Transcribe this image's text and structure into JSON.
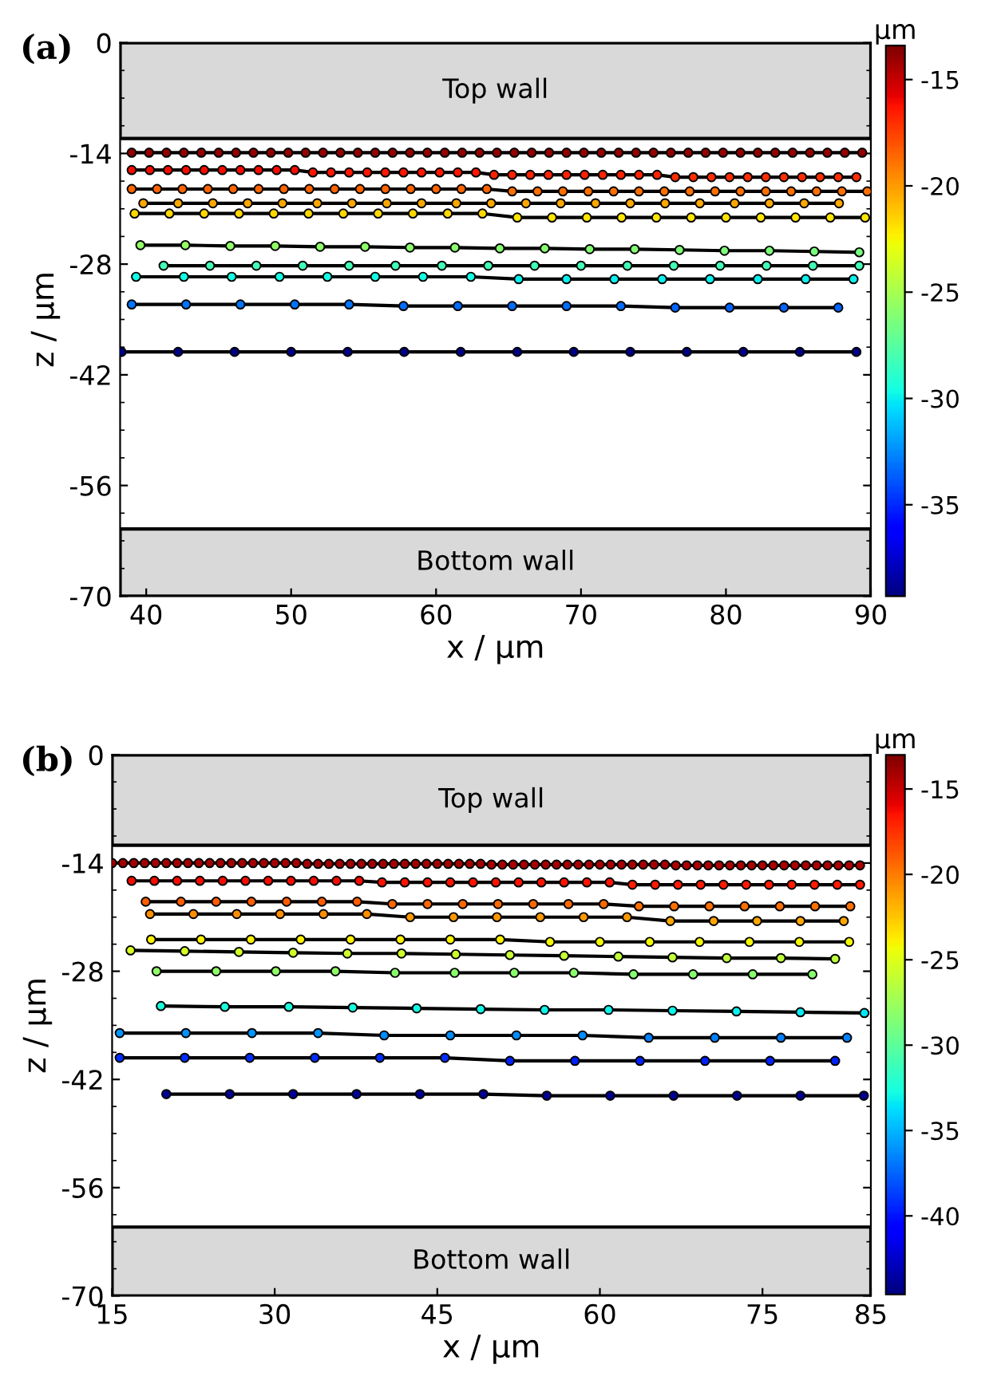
{
  "chart_data": [
    {
      "type": "line",
      "title": "(a)",
      "xlabel": "x / μm",
      "ylabel": "z / μm",
      "clabel": "μm",
      "xlim": [
        38.2,
        90
      ],
      "xticks": [
        40,
        50,
        60,
        70,
        80,
        90
      ],
      "ylim": [
        -70,
        0
      ],
      "yticks": [
        -70,
        -56,
        -42,
        -28,
        -14,
        0
      ],
      "clim": [
        -39.3,
        -13.4
      ],
      "cticks": [
        -35,
        -30,
        -25,
        -20,
        -15
      ],
      "marker": "circle",
      "line_style": "solid",
      "grid": false,
      "legend": false,
      "bands": [
        {
          "axis": "y",
          "from": -12.1,
          "to": 0,
          "label": "Top wall",
          "color": "#d9d9d9"
        },
        {
          "axis": "y",
          "from": -70,
          "to": -61.5,
          "label": "Bottom wall",
          "color": "#d9d9d9"
        }
      ],
      "series": [
        {
          "color": "#000000",
          "x": [
            39.0,
            40.2,
            41.4,
            42.6,
            43.8,
            45.0,
            46.2,
            47.4,
            48.6,
            49.8,
            51.0,
            52.2,
            53.4,
            54.6,
            55.8,
            57.0,
            58.2,
            59.4,
            60.6,
            61.8,
            63.0,
            64.2,
            65.4,
            66.6,
            67.8,
            69.0,
            70.2,
            71.4,
            72.6,
            73.8,
            75.0,
            76.2,
            77.4,
            78.6,
            79.8,
            81.0,
            82.2,
            83.4,
            84.6,
            85.8,
            87.0,
            88.2,
            89.4
          ],
          "values": [
            -13.9,
            -13.9,
            -13.9,
            -13.9,
            -13.9,
            -13.9,
            -13.9,
            -13.9,
            -13.9,
            -13.9,
            -13.9,
            -13.9,
            -13.9,
            -13.9,
            -13.9,
            -13.9,
            -13.9,
            -13.9,
            -13.9,
            -13.9,
            -13.9,
            -13.9,
            -13.9,
            -13.9,
            -13.9,
            -13.9,
            -13.9,
            -13.9,
            -13.9,
            -13.9,
            -13.9,
            -13.9,
            -13.9,
            -13.9,
            -13.9,
            -13.9,
            -13.9,
            -13.9,
            -13.9,
            -13.9,
            -13.9,
            -13.9,
            -13.9
          ]
        },
        {
          "color": "#000000",
          "x": [
            39.0,
            40.25,
            41.5,
            42.75,
            44.0,
            45.25,
            46.5,
            47.75,
            49.0,
            50.25,
            51.5,
            52.75,
            54.0,
            55.25,
            56.5,
            57.75,
            59.0,
            60.25,
            61.5,
            62.75,
            64.0,
            65.25,
            66.5,
            67.75,
            69.0,
            70.25,
            71.5,
            72.75,
            74.0,
            75.25,
            76.5,
            77.75,
            79.0,
            80.25,
            81.5,
            82.75,
            84.0,
            85.25,
            86.5,
            87.75,
            89.0
          ],
          "values": [
            -16.1,
            -16.1,
            -16.1,
            -16.1,
            -16.1,
            -16.1,
            -16.1,
            -16.1,
            -16.1,
            -16.1,
            -16.4,
            -16.4,
            -16.4,
            -16.4,
            -16.4,
            -16.4,
            -16.4,
            -16.4,
            -16.4,
            -16.4,
            -16.7,
            -16.7,
            -16.7,
            -16.7,
            -16.7,
            -16.7,
            -16.7,
            -16.7,
            -16.7,
            -16.7,
            -17.0,
            -17.0,
            -17.0,
            -17.0,
            -17.0,
            -17.0,
            -17.0,
            -17.0,
            -17.0,
            -17.0,
            -17.0
          ]
        },
        {
          "color": "#000000",
          "x": [
            39,
            40.75,
            42.5,
            44.25,
            46,
            47.75,
            49.5,
            51.25,
            53,
            54.75,
            56.5,
            58.25,
            60,
            61.75,
            63.5,
            65.25,
            67,
            68.75,
            70.5,
            72.25,
            74,
            75.75,
            77.5,
            79.25,
            81,
            82.75,
            84.5,
            86.25,
            88,
            89.75
          ],
          "values": [
            -18.5,
            -18.5,
            -18.5,
            -18.5,
            -18.5,
            -18.5,
            -18.5,
            -18.5,
            -18.5,
            -18.5,
            -18.5,
            -18.5,
            -18.5,
            -18.5,
            -18.5,
            -18.8,
            -18.8,
            -18.8,
            -18.8,
            -18.8,
            -18.8,
            -18.8,
            -18.8,
            -18.8,
            -18.8,
            -18.8,
            -18.8,
            -18.8,
            -18.8,
            -18.8
          ]
        },
        {
          "color": "#000000",
          "x": [
            39.8,
            42.2,
            44.6,
            47.0,
            49.4,
            51.8,
            54.2,
            56.6,
            59.0,
            61.4,
            63.8,
            66.2,
            68.6,
            71.0,
            73.4,
            75.8,
            78.2,
            80.6,
            83.0,
            85.4,
            87.8
          ],
          "values": [
            -20.3,
            -20.3,
            -20.3,
            -20.3,
            -20.3,
            -20.3,
            -20.3,
            -20.3,
            -20.3,
            -20.3,
            -20.3,
            -20.3,
            -20.3,
            -20.3,
            -20.3,
            -20.3,
            -20.3,
            -20.3,
            -20.3,
            -20.3,
            -20.3
          ]
        },
        {
          "color": "#000000",
          "x": [
            39.2,
            41.6,
            44.0,
            46.4,
            48.8,
            51.2,
            53.6,
            56.0,
            58.4,
            60.8,
            63.2,
            65.6,
            68.0,
            70.4,
            72.8,
            75.2,
            77.6,
            80.0,
            82.4,
            84.8,
            87.2,
            89.6
          ],
          "values": [
            -21.6,
            -21.6,
            -21.6,
            -21.6,
            -21.6,
            -21.6,
            -21.6,
            -21.6,
            -21.6,
            -21.6,
            -21.6,
            -22.1,
            -22.1,
            -22.1,
            -22.1,
            -22.1,
            -22.1,
            -22.1,
            -22.1,
            -22.1,
            -22.1,
            -22.1
          ]
        },
        {
          "color": "#000000",
          "x": [
            39.6,
            42.7,
            45.8,
            48.9,
            52.0,
            55.1,
            58.2,
            61.3,
            64.4,
            67.5,
            70.6,
            73.7,
            76.8,
            79.9,
            83.0,
            86.1,
            89.2
          ],
          "values": [
            -25.6,
            -25.6,
            -25.7,
            -25.7,
            -25.8,
            -25.8,
            -25.9,
            -25.9,
            -26.0,
            -26.0,
            -26.1,
            -26.1,
            -26.2,
            -26.3,
            -26.3,
            -26.4,
            -26.5
          ]
        },
        {
          "color": "#000000",
          "x": [
            41.2,
            44.4,
            47.6,
            50.8,
            54.0,
            57.2,
            60.4,
            63.6,
            66.8,
            70.0,
            73.2,
            76.4,
            79.6,
            82.8,
            86.0,
            89.2
          ],
          "values": [
            -28.2,
            -28.2,
            -28.2,
            -28.2,
            -28.2,
            -28.2,
            -28.2,
            -28.2,
            -28.2,
            -28.2,
            -28.2,
            -28.2,
            -28.2,
            -28.2,
            -28.2,
            -28.2
          ]
        },
        {
          "color": "#000000",
          "x": [
            39.3,
            42.6,
            45.9,
            49.2,
            52.5,
            55.8,
            59.1,
            62.4,
            65.7,
            69.0,
            72.3,
            75.6,
            78.9,
            82.2,
            85.5,
            88.8
          ],
          "values": [
            -29.6,
            -29.6,
            -29.6,
            -29.6,
            -29.6,
            -29.6,
            -29.6,
            -29.6,
            -29.9,
            -29.9,
            -29.9,
            -29.9,
            -29.9,
            -29.9,
            -29.9,
            -29.9
          ]
        },
        {
          "color": "#000000",
          "x": [
            39.0,
            42.75,
            46.5,
            50.25,
            54.0,
            57.75,
            61.5,
            65.25,
            69.0,
            72.75,
            76.5,
            80.25,
            84.0,
            87.75
          ],
          "values": [
            -33.1,
            -33.1,
            -33.1,
            -33.1,
            -33.1,
            -33.3,
            -33.3,
            -33.3,
            -33.3,
            -33.3,
            -33.5,
            -33.5,
            -33.5,
            -33.5
          ]
        },
        {
          "color": "#000000",
          "x": [
            38.3,
            42.2,
            46.1,
            50.0,
            53.9,
            57.8,
            61.7,
            65.6,
            69.5,
            73.4,
            77.3,
            81.2,
            85.1,
            89.0
          ],
          "values": [
            -39.1,
            -39.1,
            -39.1,
            -39.1,
            -39.1,
            -39.1,
            -39.1,
            -39.1,
            -39.1,
            -39.1,
            -39.1,
            -39.1,
            -39.1,
            -39.1
          ]
        }
      ]
    },
    {
      "type": "line",
      "title": "(b)",
      "xlabel": "x / μm",
      "ylabel": "z / μm",
      "clabel": "μm",
      "xlim": [
        15,
        85
      ],
      "xticks": [
        15,
        30,
        45,
        60,
        75,
        85
      ],
      "ylim": [
        -70,
        0
      ],
      "yticks": [
        -70,
        -56,
        -42,
        -28,
        -14,
        0
      ],
      "clim": [
        -44.6,
        -13.0
      ],
      "cticks": [
        -40,
        -35,
        -30,
        -25,
        -20,
        -15
      ],
      "marker": "circle",
      "line_style": "solid",
      "grid": false,
      "legend": false,
      "bands": [
        {
          "axis": "y",
          "from": -11.7,
          "to": 0,
          "label": "Top wall",
          "color": "#d9d9d9"
        },
        {
          "axis": "y",
          "from": -70,
          "to": -61.1,
          "label": "Bottom wall",
          "color": "#d9d9d9"
        }
      ],
      "series": [
        {
          "color": "#000000",
          "x": [
            15,
            16,
            17,
            18,
            19,
            20,
            21,
            22,
            23,
            24,
            25,
            26,
            27,
            28,
            29,
            30,
            31,
            32,
            33,
            34,
            35,
            36,
            37,
            38,
            39,
            40,
            41,
            42,
            43,
            44,
            45,
            46,
            47,
            48,
            49,
            50,
            51,
            52,
            53,
            54,
            55,
            56,
            57,
            58,
            59,
            60,
            61,
            62,
            63,
            64,
            65,
            66,
            67,
            68,
            69,
            70,
            71,
            72,
            73,
            74,
            75,
            76,
            77,
            78,
            79,
            80,
            81,
            82,
            83,
            84
          ],
          "values": [
            -14.0,
            -14.0,
            -14.0,
            -14.0,
            -14.0,
            -14.0,
            -14.0,
            -14.0,
            -14.0,
            -14.0,
            -14.0,
            -14.0,
            -14.0,
            -14.0,
            -14.0,
            -14.0,
            -14.0,
            -14.0,
            -14.1,
            -14.1,
            -14.1,
            -14.1,
            -14.1,
            -14.1,
            -14.1,
            -14.1,
            -14.1,
            -14.1,
            -14.1,
            -14.1,
            -14.1,
            -14.1,
            -14.1,
            -14.1,
            -14.1,
            -14.2,
            -14.2,
            -14.2,
            -14.2,
            -14.2,
            -14.2,
            -14.2,
            -14.2,
            -14.2,
            -14.2,
            -14.2,
            -14.2,
            -14.2,
            -14.2,
            -14.2,
            -14.2,
            -14.2,
            -14.3,
            -14.3,
            -14.3,
            -14.3,
            -14.3,
            -14.3,
            -14.3,
            -14.3,
            -14.3,
            -14.3,
            -14.3,
            -14.3,
            -14.3,
            -14.3,
            -14.3,
            -14.3,
            -14.3,
            -14.3
          ]
        },
        {
          "color": "#000000",
          "x": [
            16.8,
            18.9,
            21.0,
            23.1,
            25.2,
            27.3,
            29.4,
            31.5,
            33.6,
            35.7,
            37.8,
            39.9,
            42.0,
            44.1,
            46.2,
            48.3,
            50.4,
            52.5,
            54.6,
            56.7,
            58.8,
            60.9,
            63.0,
            65.1,
            67.2,
            69.3,
            71.4,
            73.5,
            75.6,
            77.7,
            79.8,
            81.9,
            84.0
          ],
          "values": [
            -16.3,
            -16.3,
            -16.3,
            -16.3,
            -16.3,
            -16.3,
            -16.3,
            -16.3,
            -16.3,
            -16.3,
            -16.3,
            -16.5,
            -16.5,
            -16.5,
            -16.5,
            -16.5,
            -16.5,
            -16.5,
            -16.5,
            -16.5,
            -16.5,
            -16.5,
            -16.8,
            -16.8,
            -16.8,
            -16.8,
            -16.8,
            -16.8,
            -16.8,
            -16.8,
            -16.8,
            -16.8,
            -16.8
          ]
        },
        {
          "color": "#000000",
          "x": [
            18.1,
            21.35,
            24.6,
            27.85,
            31.1,
            34.35,
            37.6,
            40.85,
            44.1,
            47.35,
            50.6,
            53.85,
            57.1,
            60.35,
            63.6,
            66.85,
            70.1,
            73.35,
            76.6,
            79.85,
            83.1
          ],
          "values": [
            -19.0,
            -19.0,
            -19.0,
            -19.0,
            -19.0,
            -19.0,
            -19.0,
            -19.3,
            -19.3,
            -19.3,
            -19.3,
            -19.3,
            -19.3,
            -19.3,
            -19.6,
            -19.6,
            -19.6,
            -19.6,
            -19.6,
            -19.6,
            -19.6
          ]
        },
        {
          "color": "#000000",
          "x": [
            18.5,
            22.5,
            26.5,
            30.5,
            34.5,
            38.5,
            42.5,
            46.5,
            50.5,
            54.5,
            58.5,
            62.5,
            66.5,
            70.5,
            74.5,
            78.5,
            82.5
          ],
          "values": [
            -20.6,
            -20.6,
            -20.6,
            -20.6,
            -20.6,
            -20.6,
            -21.0,
            -21.0,
            -21.0,
            -21.0,
            -21.0,
            -21.0,
            -21.5,
            -21.5,
            -21.5,
            -21.5,
            -21.5
          ]
        },
        {
          "color": "#000000",
          "x": [
            18.6,
            23.2,
            27.8,
            32.4,
            37.0,
            41.6,
            46.2,
            50.8,
            55.4,
            60.0,
            64.6,
            69.2,
            73.8,
            78.4,
            83.0
          ],
          "values": [
            -23.9,
            -23.9,
            -23.9,
            -23.9,
            -23.9,
            -23.9,
            -23.9,
            -23.9,
            -24.2,
            -24.2,
            -24.2,
            -24.2,
            -24.2,
            -24.2,
            -24.2
          ]
        },
        {
          "color": "#000000",
          "x": [
            16.7,
            21.7,
            26.7,
            31.7,
            36.7,
            41.7,
            46.7,
            51.7,
            56.7,
            61.7,
            66.7,
            71.7,
            76.7,
            81.7
          ],
          "values": [
            -25.3,
            -25.4,
            -25.5,
            -25.6,
            -25.7,
            -25.7,
            -25.8,
            -25.9,
            -26.0,
            -26.1,
            -26.2,
            -26.3,
            -26.3,
            -26.4
          ]
        },
        {
          "color": "#000000",
          "x": [
            19.1,
            24.6,
            30.1,
            35.6,
            41.1,
            46.6,
            52.1,
            57.6,
            63.1,
            68.6,
            74.1,
            79.6
          ],
          "values": [
            -28.0,
            -28.0,
            -28.0,
            -28.0,
            -28.2,
            -28.2,
            -28.2,
            -28.2,
            -28.4,
            -28.4,
            -28.4,
            -28.4
          ]
        },
        {
          "color": "#000000",
          "x": [
            19.5,
            25.4,
            31.3,
            37.2,
            43.1,
            49.0,
            54.9,
            60.8,
            66.7,
            72.6,
            78.5,
            84.4
          ],
          "values": [
            -32.5,
            -32.6,
            -32.6,
            -32.7,
            -32.8,
            -32.9,
            -33.0,
            -33.0,
            -33.1,
            -33.2,
            -33.3,
            -33.4
          ]
        },
        {
          "color": "#000000",
          "x": [
            15.7,
            21.8,
            27.9,
            34.0,
            40.1,
            46.2,
            52.3,
            58.4,
            64.5,
            70.6,
            76.7,
            82.8
          ],
          "values": [
            -36.0,
            -36.0,
            -36.0,
            -36.0,
            -36.3,
            -36.3,
            -36.3,
            -36.3,
            -36.6,
            -36.6,
            -36.6,
            -36.6
          ]
        },
        {
          "color": "#000000",
          "x": [
            15.7,
            21.7,
            27.7,
            33.7,
            39.7,
            45.7,
            51.7,
            57.7,
            63.7,
            69.7,
            75.7,
            81.7
          ],
          "values": [
            -39.2,
            -39.2,
            -39.2,
            -39.2,
            -39.2,
            -39.2,
            -39.6,
            -39.6,
            -39.6,
            -39.6,
            -39.6,
            -39.6
          ]
        },
        {
          "color": "#000000",
          "x": [
            20.0,
            25.85,
            31.7,
            37.55,
            43.4,
            49.25,
            55.1,
            60.95,
            66.8,
            72.65,
            78.5,
            84.35
          ],
          "values": [
            -43.9,
            -43.9,
            -43.9,
            -43.9,
            -43.9,
            -43.9,
            -44.1,
            -44.1,
            -44.1,
            -44.1,
            -44.1,
            -44.1
          ]
        }
      ]
    }
  ]
}
